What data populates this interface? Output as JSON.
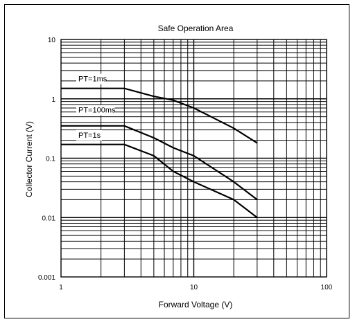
{
  "chart_data": {
    "type": "line",
    "title": "Safe Operation Area",
    "xlabel": "Forward Voltage (V)",
    "ylabel": "Collector Current (V)",
    "x_scale": "log",
    "y_scale": "log",
    "xlim": [
      1,
      100
    ],
    "ylim": [
      0.001,
      10
    ],
    "grid": true,
    "x_ticks": [
      "1",
      "10",
      "100"
    ],
    "y_ticks": [
      "0.001",
      "0.01",
      "0.1",
      "1",
      "10"
    ],
    "series": [
      {
        "name": "PT=1ms",
        "points": [
          [
            1,
            1.5
          ],
          [
            3,
            1.5
          ],
          [
            5,
            1.1
          ],
          [
            7,
            0.95
          ],
          [
            10,
            0.7
          ],
          [
            20,
            0.32
          ],
          [
            30,
            0.18
          ]
        ]
      },
      {
        "name": "PT=100ms",
        "points": [
          [
            1,
            0.35
          ],
          [
            3,
            0.35
          ],
          [
            5,
            0.22
          ],
          [
            7,
            0.15
          ],
          [
            10,
            0.11
          ],
          [
            20,
            0.04
          ],
          [
            30,
            0.02
          ]
        ]
      },
      {
        "name": "PT=1s",
        "points": [
          [
            1,
            0.17
          ],
          [
            3,
            0.17
          ],
          [
            5,
            0.11
          ],
          [
            7,
            0.06
          ],
          [
            10,
            0.04
          ],
          [
            20,
            0.02
          ],
          [
            30,
            0.01
          ]
        ]
      }
    ]
  }
}
